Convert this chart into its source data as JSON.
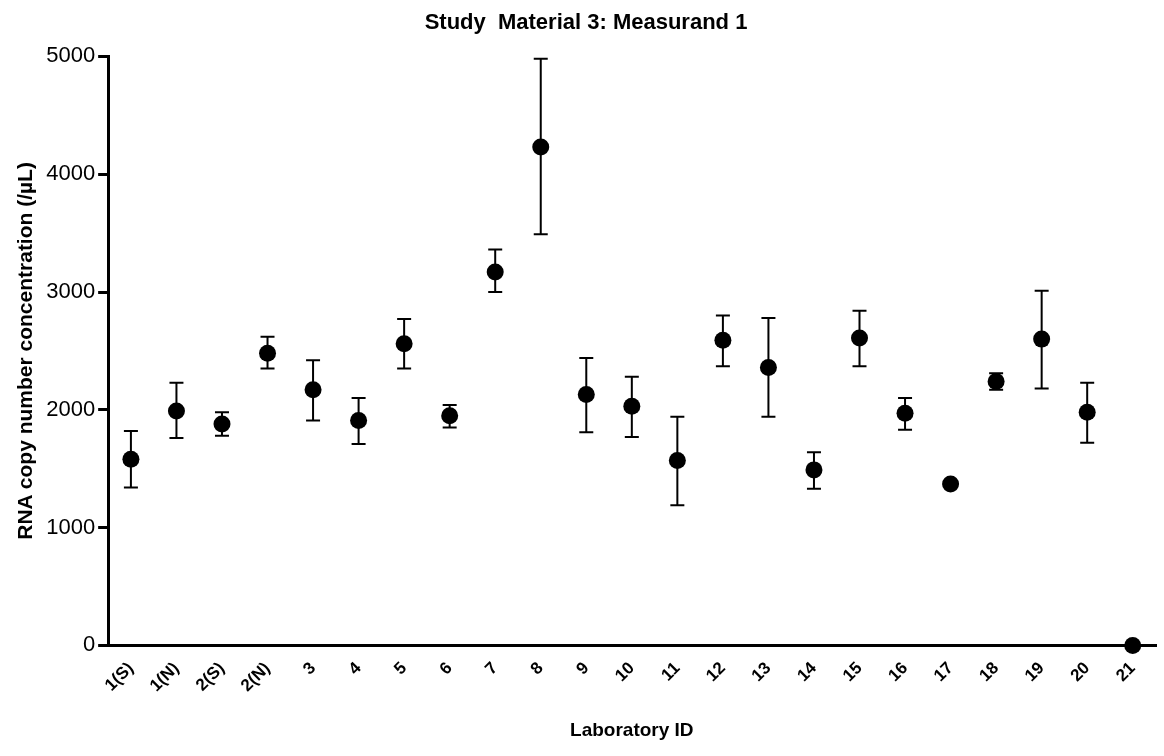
{
  "chart_data": {
    "type": "scatter",
    "title": "Study  Material 3: Measurand 1",
    "xlabel": "Laboratory ID",
    "ylabel": "RNA copy number concentration (/µL)",
    "categories": [
      "1(S)",
      "1(N)",
      "2(S)",
      "2(N)",
      "3",
      "4",
      "5",
      "6",
      "7",
      "8",
      "9",
      "10",
      "11",
      "12",
      "13",
      "14",
      "15",
      "16",
      "17",
      "18",
      "19",
      "20",
      "21"
    ],
    "values": [
      1580,
      1990,
      1880,
      2480,
      2170,
      1910,
      2560,
      1950,
      3170,
      4230,
      2130,
      2030,
      1570,
      2590,
      2360,
      1490,
      2610,
      1970,
      1370,
      2240,
      2600,
      1980,
      0
    ],
    "errors": [
      [
        1340,
        1820
      ],
      [
        1760,
        2230
      ],
      [
        1780,
        1980
      ],
      [
        2350,
        2620
      ],
      [
        1910,
        2420
      ],
      [
        1710,
        2100
      ],
      [
        2350,
        2770
      ],
      [
        1850,
        2040
      ],
      [
        3000,
        3360
      ],
      [
        3490,
        4980
      ],
      [
        1810,
        2440
      ],
      [
        1770,
        2280
      ],
      [
        1190,
        1940
      ],
      [
        2370,
        2800
      ],
      [
        1940,
        2780
      ],
      [
        1330,
        1640
      ],
      [
        2370,
        2840
      ],
      [
        1830,
        2100
      ],
      null,
      [
        2170,
        2310
      ],
      [
        2180,
        3010
      ],
      [
        1720,
        2230
      ],
      null
    ],
    "color": "#000000",
    "marker": "circle",
    "ylim": [
      0,
      5000
    ],
    "yticks": [
      0,
      1000,
      2000,
      3000,
      4000,
      5000
    ],
    "grid": false,
    "legend": false
  }
}
